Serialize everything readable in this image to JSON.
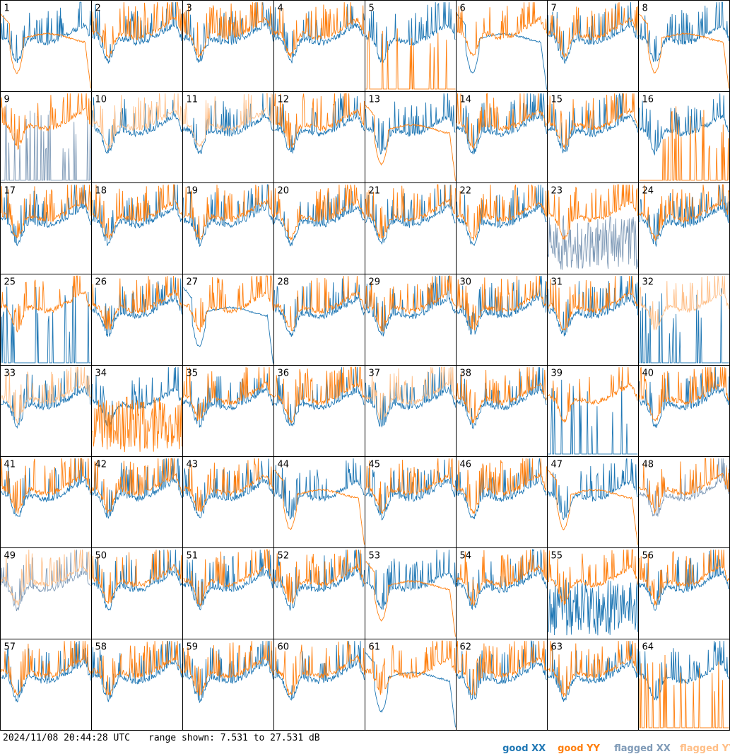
{
  "footer": {
    "timestamp": "2024/11/08 20:44:28 UTC",
    "range_text": "range shown: 7.531 to 27.531 dB"
  },
  "legend": [
    {
      "label": "good",
      "pol": "XX",
      "color": "#1f77b4"
    },
    {
      "label": "good",
      "pol": "YY",
      "color": "#ff7f0e"
    },
    {
      "label": "flagged",
      "pol": "XX",
      "color": "#7f9ab7"
    },
    {
      "label": "flagged",
      "pol": "YY",
      "color": "#ffbe86"
    }
  ],
  "colors": {
    "good_xx": "#1f77b4",
    "good_yy": "#ff7f0e",
    "flagged_xx": "#7f9ab7",
    "flagged_yy": "#ffbe86",
    "border": "#000000"
  },
  "chart_data": {
    "type": "line",
    "grid_columns": 8,
    "grid_rows": 8,
    "y_range_db": [
      7.531,
      27.531
    ],
    "panels": [
      {
        "label": "1",
        "xx": "normal",
        "yy": "rolloff",
        "flag": ""
      },
      {
        "label": "2",
        "xx": "normal",
        "yy": "normal",
        "flag": ""
      },
      {
        "label": "3",
        "xx": "normal",
        "yy": "normal",
        "flag": ""
      },
      {
        "label": "4",
        "xx": "normal",
        "yy": "normal",
        "flag": ""
      },
      {
        "label": "5",
        "xx": "normal",
        "yy": "sparse",
        "flag": ""
      },
      {
        "label": "6",
        "xx": "rolloff",
        "yy": "normal",
        "flag": ""
      },
      {
        "label": "7",
        "xx": "normal",
        "yy": "normal",
        "flag": ""
      },
      {
        "label": "8",
        "xx": "normal",
        "yy": "rolloff",
        "flag": ""
      },
      {
        "label": "9",
        "xx": "sparse",
        "yy": "normal",
        "flag": "xx"
      },
      {
        "label": "10",
        "xx": "normal",
        "yy": "normal",
        "flag": "yy"
      },
      {
        "label": "11",
        "xx": "normal",
        "yy": "normal",
        "flag": "yy"
      },
      {
        "label": "12",
        "xx": "normal",
        "yy": "normal",
        "flag": ""
      },
      {
        "label": "13",
        "xx": "normal",
        "yy": "rolloff",
        "flag": ""
      },
      {
        "label": "14",
        "xx": "normal",
        "yy": "normal",
        "flag": ""
      },
      {
        "label": "15",
        "xx": "normal",
        "yy": "normal",
        "flag": ""
      },
      {
        "label": "16",
        "xx": "normal",
        "yy": "sparse",
        "flag": ""
      },
      {
        "label": "17",
        "xx": "normal",
        "yy": "normal",
        "flag": ""
      },
      {
        "label": "18",
        "xx": "normal",
        "yy": "normal",
        "flag": ""
      },
      {
        "label": "19",
        "xx": "normal",
        "yy": "normal",
        "flag": ""
      },
      {
        "label": "20",
        "xx": "normal",
        "yy": "normal",
        "flag": ""
      },
      {
        "label": "21",
        "xx": "normal",
        "yy": "normal",
        "flag": ""
      },
      {
        "label": "22",
        "xx": "normal",
        "yy": "normal",
        "flag": ""
      },
      {
        "label": "23",
        "xx": "noisy",
        "yy": "normal",
        "flag": "xx"
      },
      {
        "label": "24",
        "xx": "normal",
        "yy": "normal",
        "flag": ""
      },
      {
        "label": "25",
        "xx": "sparse",
        "yy": "normal",
        "flag": ""
      },
      {
        "label": "26",
        "xx": "normal",
        "yy": "normal",
        "flag": ""
      },
      {
        "label": "27",
        "xx": "rolloff",
        "yy": "normal",
        "flag": ""
      },
      {
        "label": "28",
        "xx": "normal",
        "yy": "normal",
        "flag": ""
      },
      {
        "label": "29",
        "xx": "normal",
        "yy": "normal",
        "flag": ""
      },
      {
        "label": "30",
        "xx": "normal",
        "yy": "normal",
        "flag": ""
      },
      {
        "label": "31",
        "xx": "normal",
        "yy": "normal",
        "flag": ""
      },
      {
        "label": "32",
        "xx": "sparse",
        "yy": "normal",
        "flag": "yy"
      },
      {
        "label": "33",
        "xx": "normal",
        "yy": "normal",
        "flag": "yy"
      },
      {
        "label": "34",
        "xx": "normal",
        "yy": "noisy",
        "flag": ""
      },
      {
        "label": "35",
        "xx": "normal",
        "yy": "normal",
        "flag": ""
      },
      {
        "label": "36",
        "xx": "normal",
        "yy": "normal",
        "flag": ""
      },
      {
        "label": "37",
        "xx": "normal",
        "yy": "normal",
        "flag": "yy"
      },
      {
        "label": "38",
        "xx": "normal",
        "yy": "normal",
        "flag": ""
      },
      {
        "label": "39",
        "xx": "sparse",
        "yy": "normal",
        "flag": ""
      },
      {
        "label": "40",
        "xx": "normal",
        "yy": "normal",
        "flag": ""
      },
      {
        "label": "41",
        "xx": "normal",
        "yy": "normal",
        "flag": ""
      },
      {
        "label": "42",
        "xx": "normal",
        "yy": "normal",
        "flag": ""
      },
      {
        "label": "43",
        "xx": "normal",
        "yy": "normal",
        "flag": ""
      },
      {
        "label": "44",
        "xx": "normal",
        "yy": "rolloff",
        "flag": ""
      },
      {
        "label": "45",
        "xx": "normal",
        "yy": "normal",
        "flag": ""
      },
      {
        "label": "46",
        "xx": "normal",
        "yy": "normal",
        "flag": ""
      },
      {
        "label": "47",
        "xx": "normal",
        "yy": "rolloff",
        "flag": ""
      },
      {
        "label": "48",
        "xx": "normal",
        "yy": "normal",
        "flag": "xx"
      },
      {
        "label": "49",
        "xx": "normal",
        "yy": "normal",
        "flag": "both"
      },
      {
        "label": "50",
        "xx": "normal",
        "yy": "normal",
        "flag": ""
      },
      {
        "label": "51",
        "xx": "normal",
        "yy": "normal",
        "flag": ""
      },
      {
        "label": "52",
        "xx": "normal",
        "yy": "normal",
        "flag": ""
      },
      {
        "label": "53",
        "xx": "normal",
        "yy": "rolloff",
        "flag": ""
      },
      {
        "label": "54",
        "xx": "normal",
        "yy": "normal",
        "flag": ""
      },
      {
        "label": "55",
        "xx": "noisy",
        "yy": "normal",
        "flag": ""
      },
      {
        "label": "56",
        "xx": "normal",
        "yy": "normal",
        "flag": ""
      },
      {
        "label": "57",
        "xx": "normal",
        "yy": "normal",
        "flag": ""
      },
      {
        "label": "58",
        "xx": "normal",
        "yy": "normal",
        "flag": ""
      },
      {
        "label": "59",
        "xx": "normal",
        "yy": "normal",
        "flag": ""
      },
      {
        "label": "60",
        "xx": "normal",
        "yy": "normal",
        "flag": ""
      },
      {
        "label": "61",
        "xx": "rolloff",
        "yy": "normal",
        "flag": ""
      },
      {
        "label": "62",
        "xx": "normal",
        "yy": "normal",
        "flag": ""
      },
      {
        "label": "63",
        "xx": "normal",
        "yy": "normal",
        "flag": ""
      },
      {
        "label": "64",
        "xx": "normal",
        "yy": "sparse",
        "flag": ""
      }
    ]
  }
}
